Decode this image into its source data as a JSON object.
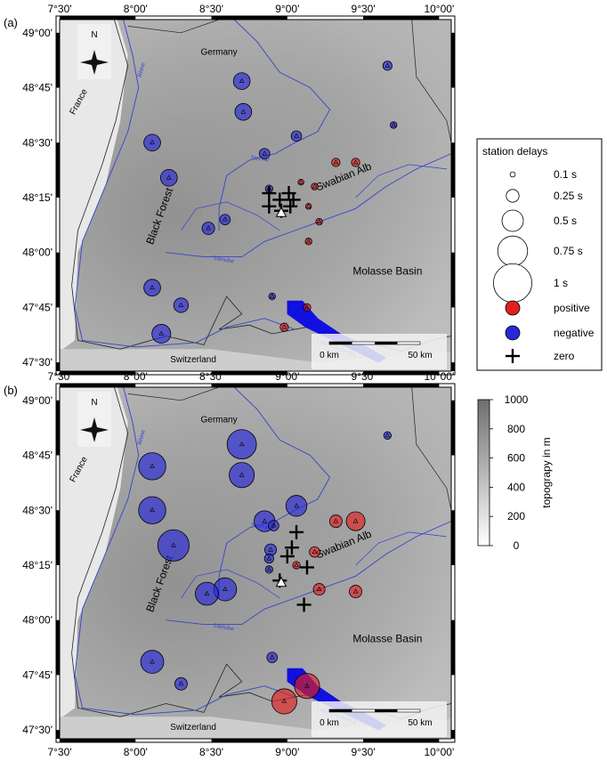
{
  "panels": [
    {
      "label": "(a)",
      "delays": [
        {
          "lon": 8.7,
          "lat": 48.78,
          "size": 0.4,
          "sign": "negative"
        },
        {
          "lon": 8.71,
          "lat": 48.64,
          "size": 0.4,
          "sign": "negative"
        },
        {
          "lon": 9.66,
          "lat": 48.85,
          "size": 0.22,
          "sign": "negative"
        },
        {
          "lon": 9.7,
          "lat": 48.58,
          "size": 0.16,
          "sign": "negative"
        },
        {
          "lon": 8.11,
          "lat": 48.5,
          "size": 0.4,
          "sign": "negative"
        },
        {
          "lon": 8.22,
          "lat": 48.34,
          "size": 0.4,
          "sign": "negative"
        },
        {
          "lon": 8.85,
          "lat": 48.45,
          "size": 0.25,
          "sign": "negative"
        },
        {
          "lon": 9.06,
          "lat": 48.53,
          "size": 0.25,
          "sign": "negative"
        },
        {
          "lon": 8.88,
          "lat": 48.29,
          "size": 0.18,
          "sign": "negative"
        },
        {
          "lon": 8.59,
          "lat": 48.15,
          "size": 0.25,
          "sign": "negative"
        },
        {
          "lon": 8.48,
          "lat": 48.11,
          "size": 0.3,
          "sign": "negative"
        },
        {
          "lon": 8.9,
          "lat": 47.8,
          "size": 0.16,
          "sign": "negative"
        },
        {
          "lon": 8.11,
          "lat": 47.84,
          "size": 0.4,
          "sign": "negative"
        },
        {
          "lon": 8.3,
          "lat": 47.76,
          "size": 0.35,
          "sign": "negative"
        },
        {
          "lon": 8.17,
          "lat": 47.63,
          "size": 0.45,
          "sign": "negative"
        },
        {
          "lon": 9.32,
          "lat": 48.41,
          "size": 0.2,
          "sign": "positive"
        },
        {
          "lon": 9.45,
          "lat": 48.41,
          "size": 0.2,
          "sign": "positive"
        },
        {
          "lon": 9.18,
          "lat": 48.3,
          "size": 0.16,
          "sign": "positive"
        },
        {
          "lon": 9.09,
          "lat": 48.32,
          "size": 0.14,
          "sign": "positive"
        },
        {
          "lon": 9.14,
          "lat": 48.21,
          "size": 0.14,
          "sign": "positive"
        },
        {
          "lon": 9.21,
          "lat": 48.14,
          "size": 0.16,
          "sign": "positive"
        },
        {
          "lon": 9.14,
          "lat": 48.05,
          "size": 0.16,
          "sign": "positive"
        },
        {
          "lon": 9.13,
          "lat": 47.75,
          "size": 0.18,
          "sign": "positive"
        },
        {
          "lon": 8.98,
          "lat": 47.66,
          "size": 0.2,
          "sign": "positive"
        }
      ],
      "zeros": [
        {
          "lon": 8.88,
          "lat": 48.27
        },
        {
          "lon": 9.01,
          "lat": 48.27
        },
        {
          "lon": 8.95,
          "lat": 48.24
        },
        {
          "lon": 9.02,
          "lat": 48.21
        },
        {
          "lon": 8.88,
          "lat": 48.21
        },
        {
          "lon": 9.04,
          "lat": 48.24
        },
        {
          "lon": 8.96,
          "lat": 48.19
        }
      ],
      "reference_station": {
        "lon": 8.96,
        "lat": 48.18
      }
    },
    {
      "label": "(b)",
      "delays": [
        {
          "lon": 8.7,
          "lat": 48.8,
          "size": 0.7,
          "sign": "negative"
        },
        {
          "lon": 8.7,
          "lat": 48.66,
          "size": 0.6,
          "sign": "negative"
        },
        {
          "lon": 9.66,
          "lat": 48.84,
          "size": 0.18,
          "sign": "negative"
        },
        {
          "lon": 8.11,
          "lat": 48.7,
          "size": 0.65,
          "sign": "negative"
        },
        {
          "lon": 8.11,
          "lat": 48.5,
          "size": 0.65,
          "sign": "negative"
        },
        {
          "lon": 8.25,
          "lat": 48.34,
          "size": 0.75,
          "sign": "negative"
        },
        {
          "lon": 8.85,
          "lat": 48.45,
          "size": 0.5,
          "sign": "negative"
        },
        {
          "lon": 9.06,
          "lat": 48.52,
          "size": 0.5,
          "sign": "negative"
        },
        {
          "lon": 8.91,
          "lat": 48.43,
          "size": 0.25,
          "sign": "negative"
        },
        {
          "lon": 8.89,
          "lat": 48.32,
          "size": 0.28,
          "sign": "negative"
        },
        {
          "lon": 8.88,
          "lat": 48.28,
          "size": 0.22,
          "sign": "negative"
        },
        {
          "lon": 8.88,
          "lat": 48.23,
          "size": 0.18,
          "sign": "negative"
        },
        {
          "lon": 8.59,
          "lat": 48.14,
          "size": 0.55,
          "sign": "negative"
        },
        {
          "lon": 8.47,
          "lat": 48.12,
          "size": 0.55,
          "sign": "negative"
        },
        {
          "lon": 8.9,
          "lat": 47.83,
          "size": 0.25,
          "sign": "negative"
        },
        {
          "lon": 8.11,
          "lat": 47.81,
          "size": 0.55,
          "sign": "negative"
        },
        {
          "lon": 8.3,
          "lat": 47.71,
          "size": 0.3,
          "sign": "negative"
        },
        {
          "lon": 9.32,
          "lat": 48.45,
          "size": 0.3,
          "sign": "positive"
        },
        {
          "lon": 9.45,
          "lat": 48.45,
          "size": 0.45,
          "sign": "positive"
        },
        {
          "lon": 9.18,
          "lat": 48.31,
          "size": 0.25,
          "sign": "positive"
        },
        {
          "lon": 9.06,
          "lat": 48.25,
          "size": 0.18,
          "sign": "positive"
        },
        {
          "lon": 9.21,
          "lat": 48.14,
          "size": 0.28,
          "sign": "positive"
        },
        {
          "lon": 9.45,
          "lat": 48.13,
          "size": 0.3,
          "sign": "positive"
        },
        {
          "lon": 9.13,
          "lat": 47.7,
          "size": 0.6,
          "sign": "positive"
        },
        {
          "lon": 8.98,
          "lat": 47.63,
          "size": 0.6,
          "sign": "positive"
        }
      ],
      "zeros": [
        {
          "lon": 9.06,
          "lat": 48.4
        },
        {
          "lon": 9.03,
          "lat": 48.33
        },
        {
          "lon": 9.0,
          "lat": 48.29
        },
        {
          "lon": 9.13,
          "lat": 48.24
        },
        {
          "lon": 8.95,
          "lat": 48.18
        },
        {
          "lon": 9.11,
          "lat": 48.07
        }
      ],
      "reference_station": {
        "lon": 8.96,
        "lat": 48.17
      }
    }
  ],
  "axes": {
    "lon_ticks": [
      "7°30'",
      "8°00'",
      "8°30'",
      "9°00'",
      "9°30'",
      "10°00'"
    ],
    "lat_ticks": [
      "49°00'",
      "48°45'",
      "48°30'",
      "48°15'",
      "48°00'",
      "47°45'",
      "47°30'"
    ],
    "lon_values": [
      7.5,
      8.0,
      8.5,
      9.0,
      9.5,
      10.0
    ],
    "lat_values": [
      49.0,
      48.75,
      48.5,
      48.25,
      48.0,
      47.75,
      47.5
    ]
  },
  "map_labels": {
    "germany": "Germany",
    "france": "France",
    "switzerland": "Switzerland",
    "black_forest": "Black Forest",
    "swabian_alb": "Swabian Alb",
    "molasse_basin": "Molasse Basin",
    "rhine": "Rhine",
    "neckar": "Neckar",
    "danube": "Danube",
    "lake_constance": "Lake Constance",
    "north": "N"
  },
  "scalebar": {
    "start": "0 km",
    "end": "50 km"
  },
  "legend": {
    "title": "station delays",
    "sizes": [
      "0.1 s",
      "0.25 s",
      "0.5 s",
      "0.75 s",
      "1 s"
    ],
    "positive": "positive",
    "negative": "negative",
    "zero": "zero"
  },
  "colorbar": {
    "label": "topograpy in m",
    "ticks": [
      "0",
      "200",
      "400",
      "600",
      "800",
      "1000"
    ]
  },
  "colors": {
    "positive": "#e02020",
    "negative": "#2828d8",
    "river": "#3344cc",
    "lake": "#1010e0"
  }
}
